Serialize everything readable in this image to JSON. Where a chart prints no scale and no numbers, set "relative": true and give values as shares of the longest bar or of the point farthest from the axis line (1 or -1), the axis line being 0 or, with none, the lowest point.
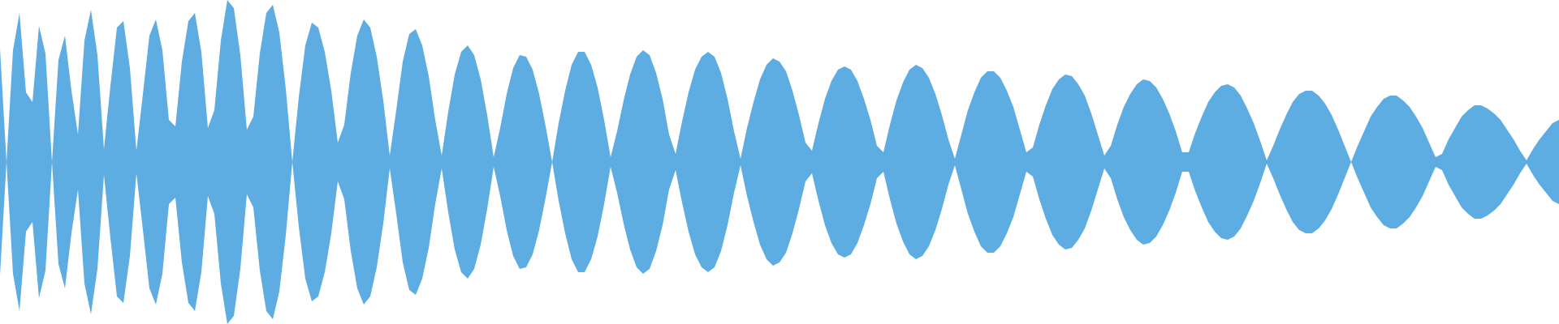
{
  "chart_data": {
    "type": "area",
    "relative": true,
    "categories": [
      null,
      null,
      null,
      null,
      null,
      null,
      null,
      null,
      null,
      null,
      null,
      null,
      null,
      null,
      null,
      null,
      null,
      null,
      null,
      null,
      null,
      null,
      null,
      null,
      null,
      null,
      null,
      null,
      null,
      null,
      null,
      null,
      null,
      null,
      null,
      null,
      null,
      null,
      null,
      null,
      null,
      null,
      null,
      null,
      null,
      null,
      null,
      null,
      null,
      null,
      null,
      null,
      null,
      null,
      null,
      null,
      null,
      null,
      null,
      null,
      null,
      null,
      null,
      null,
      null,
      null,
      null,
      null,
      null,
      null,
      null,
      null,
      null,
      null,
      null,
      null,
      null,
      null,
      null,
      null,
      null,
      null,
      null,
      null,
      null,
      null,
      null,
      null,
      null,
      null,
      null,
      null,
      null,
      null,
      null,
      null,
      null,
      null,
      null,
      null,
      null,
      null,
      null,
      null,
      null,
      null,
      null,
      null,
      null,
      null,
      null,
      null,
      null,
      null,
      null,
      null,
      null,
      null,
      null,
      null,
      null,
      null,
      null,
      null,
      null,
      null,
      null,
      null,
      null,
      null,
      null,
      null,
      null,
      null,
      null,
      null,
      null,
      null,
      null,
      null,
      null,
      null,
      null,
      null,
      null,
      null,
      null,
      null,
      null,
      null,
      null,
      null,
      null,
      null,
      null,
      null,
      null,
      null,
      null,
      null,
      null,
      null,
      null,
      null,
      null,
      null,
      null,
      null,
      null,
      null,
      null,
      null,
      null,
      null,
      null,
      null,
      null,
      null,
      null,
      null,
      null,
      null,
      null,
      null,
      null,
      null,
      null,
      null,
      null,
      null,
      null,
      null,
      null,
      null,
      null,
      null,
      null,
      null,
      null,
      null,
      null,
      null,
      null,
      null,
      null,
      null,
      null,
      null,
      null,
      null,
      null,
      null,
      null,
      null,
      null,
      null,
      null,
      null,
      null,
      null,
      null,
      null,
      null,
      null,
      null,
      null,
      null,
      null,
      null,
      null,
      null,
      null,
      null,
      null,
      null,
      null,
      null,
      null,
      null,
      null,
      null
    ],
    "series": [
      {
        "color": "#5dade2",
        "values": [
          0.7,
          0,
          0.69,
          0.92,
          0.43,
          0.37,
          0.84,
          0.67,
          0,
          0.63,
          0.78,
          0.44,
          0.17,
          0.75,
          0.94,
          0.66,
          0.08,
          0.47,
          0.83,
          0.87,
          0.58,
          0.07,
          0.42,
          0.78,
          0.88,
          0.69,
          0.26,
          0.22,
          0.62,
          0.87,
          0.92,
          0.68,
          0.21,
          0.32,
          0.75,
          1.0,
          0.95,
          0.66,
          0.2,
          0.28,
          0.67,
          0.92,
          0.97,
          0.8,
          0.45,
          0,
          0.4,
          0.72,
          0.86,
          0.83,
          0.68,
          0.44,
          0.12,
          0.23,
          0.55,
          0.78,
          0.88,
          0.83,
          0.65,
          0.38,
          0.04,
          0.32,
          0.62,
          0.79,
          0.82,
          0.72,
          0.53,
          0.26,
          0.04,
          0.31,
          0.54,
          0.68,
          0.72,
          0.66,
          0.51,
          0.29,
          0.03,
          0.21,
          0.42,
          0.58,
          0.66,
          0.65,
          0.57,
          0.42,
          0.22,
          0,
          0.24,
          0.44,
          0.6,
          0.68,
          0.68,
          0.6,
          0.46,
          0.26,
          0.03,
          0.19,
          0.38,
          0.54,
          0.65,
          0.69,
          0.66,
          0.55,
          0.39,
          0.17,
          0.05,
          0.25,
          0.43,
          0.57,
          0.65,
          0.68,
          0.65,
          0.55,
          0.39,
          0.19,
          0.02,
          0.21,
          0.37,
          0.51,
          0.6,
          0.64,
          0.62,
          0.56,
          0.44,
          0.29,
          0.12,
          0.07,
          0.24,
          0.39,
          0.5,
          0.57,
          0.59,
          0.57,
          0.5,
          0.39,
          0.26,
          0.1,
          0.06,
          0.23,
          0.38,
          0.49,
          0.57,
          0.6,
          0.58,
          0.52,
          0.42,
          0.29,
          0.14,
          0.02,
          0.17,
          0.32,
          0.43,
          0.52,
          0.56,
          0.56,
          0.52,
          0.44,
          0.34,
          0.2,
          0.06,
          0.09,
          0.23,
          0.35,
          0.45,
          0.51,
          0.54,
          0.53,
          0.48,
          0.41,
          0.3,
          0.17,
          0.04,
          0.1,
          0.23,
          0.34,
          0.42,
          0.48,
          0.51,
          0.5,
          0.46,
          0.39,
          0.3,
          0.19,
          0.06,
          0.06,
          0.18,
          0.28,
          0.37,
          0.43,
          0.47,
          0.48,
          0.46,
          0.41,
          0.33,
          0.24,
          0.13,
          0.01,
          0.1,
          0.2,
          0.29,
          0.37,
          0.42,
          0.44,
          0.44,
          0.41,
          0.36,
          0.29,
          0.2,
          0.1,
          0,
          0.1,
          0.19,
          0.28,
          0.34,
          0.39,
          0.41,
          0.41,
          0.38,
          0.34,
          0.28,
          0.21,
          0.12,
          0.03,
          0.05,
          0.14,
          0.21,
          0.28,
          0.32,
          0.35,
          0.35,
          0.33,
          0.3,
          0.26,
          0.2,
          0.14,
          0.07,
          0.01,
          0.08,
          0.14,
          0.19,
          0.24,
          0.26
        ]
      },
      {
        "color": "#5dade2",
        "values": [
          -0.7,
          0,
          -0.69,
          -0.92,
          -0.43,
          -0.37,
          -0.84,
          -0.67,
          0,
          -0.63,
          -0.78,
          -0.44,
          -0.17,
          -0.75,
          -0.94,
          -0.66,
          -0.08,
          -0.47,
          -0.83,
          -0.87,
          -0.58,
          -0.07,
          -0.42,
          -0.78,
          -0.88,
          -0.69,
          -0.26,
          -0.22,
          -0.62,
          -0.87,
          -0.92,
          -0.68,
          -0.21,
          -0.32,
          -0.75,
          -1.0,
          -0.95,
          -0.66,
          -0.2,
          -0.28,
          -0.67,
          -0.92,
          -0.97,
          -0.8,
          -0.45,
          0,
          -0.4,
          -0.72,
          -0.86,
          -0.83,
          -0.68,
          -0.44,
          -0.12,
          -0.23,
          -0.55,
          -0.78,
          -0.88,
          -0.83,
          -0.65,
          -0.38,
          -0.04,
          -0.32,
          -0.62,
          -0.79,
          -0.82,
          -0.72,
          -0.53,
          -0.26,
          -0.04,
          -0.31,
          -0.54,
          -0.68,
          -0.72,
          -0.66,
          -0.51,
          -0.29,
          -0.03,
          -0.21,
          -0.42,
          -0.58,
          -0.66,
          -0.65,
          -0.57,
          -0.42,
          -0.22,
          0,
          -0.24,
          -0.44,
          -0.6,
          -0.68,
          -0.68,
          -0.6,
          -0.46,
          -0.26,
          -0.03,
          -0.19,
          -0.38,
          -0.54,
          -0.65,
          -0.69,
          -0.66,
          -0.55,
          -0.39,
          -0.17,
          -0.05,
          -0.25,
          -0.43,
          -0.57,
          -0.65,
          -0.68,
          -0.65,
          -0.55,
          -0.39,
          -0.19,
          -0.02,
          -0.21,
          -0.37,
          -0.51,
          -0.6,
          -0.64,
          -0.62,
          -0.56,
          -0.44,
          -0.29,
          -0.12,
          -0.07,
          -0.24,
          -0.39,
          -0.5,
          -0.57,
          -0.59,
          -0.57,
          -0.5,
          -0.39,
          -0.26,
          -0.1,
          -0.06,
          -0.23,
          -0.38,
          -0.49,
          -0.57,
          -0.6,
          -0.58,
          -0.52,
          -0.42,
          -0.29,
          -0.14,
          -0.02,
          -0.17,
          -0.32,
          -0.43,
          -0.52,
          -0.56,
          -0.56,
          -0.52,
          -0.44,
          -0.34,
          -0.2,
          -0.06,
          -0.09,
          -0.23,
          -0.35,
          -0.45,
          -0.51,
          -0.54,
          -0.53,
          -0.48,
          -0.41,
          -0.3,
          -0.17,
          -0.04,
          -0.1,
          -0.23,
          -0.34,
          -0.42,
          -0.48,
          -0.51,
          -0.5,
          -0.46,
          -0.39,
          -0.3,
          -0.19,
          -0.06,
          -0.06,
          -0.18,
          -0.28,
          -0.37,
          -0.43,
          -0.47,
          -0.48,
          -0.46,
          -0.41,
          -0.33,
          -0.24,
          -0.13,
          -0.01,
          -0.1,
          -0.2,
          -0.29,
          -0.37,
          -0.42,
          -0.44,
          -0.44,
          -0.41,
          -0.36,
          -0.29,
          -0.2,
          -0.1,
          0,
          -0.1,
          -0.19,
          -0.28,
          -0.34,
          -0.39,
          -0.41,
          -0.41,
          -0.38,
          -0.34,
          -0.28,
          -0.21,
          -0.12,
          -0.03,
          -0.05,
          -0.14,
          -0.21,
          -0.28,
          -0.32,
          -0.35,
          -0.35,
          -0.33,
          -0.3,
          -0.26,
          -0.2,
          -0.14,
          -0.07,
          -0.01,
          -0.08,
          -0.14,
          -0.19,
          -0.24,
          -0.26
        ]
      }
    ]
  }
}
